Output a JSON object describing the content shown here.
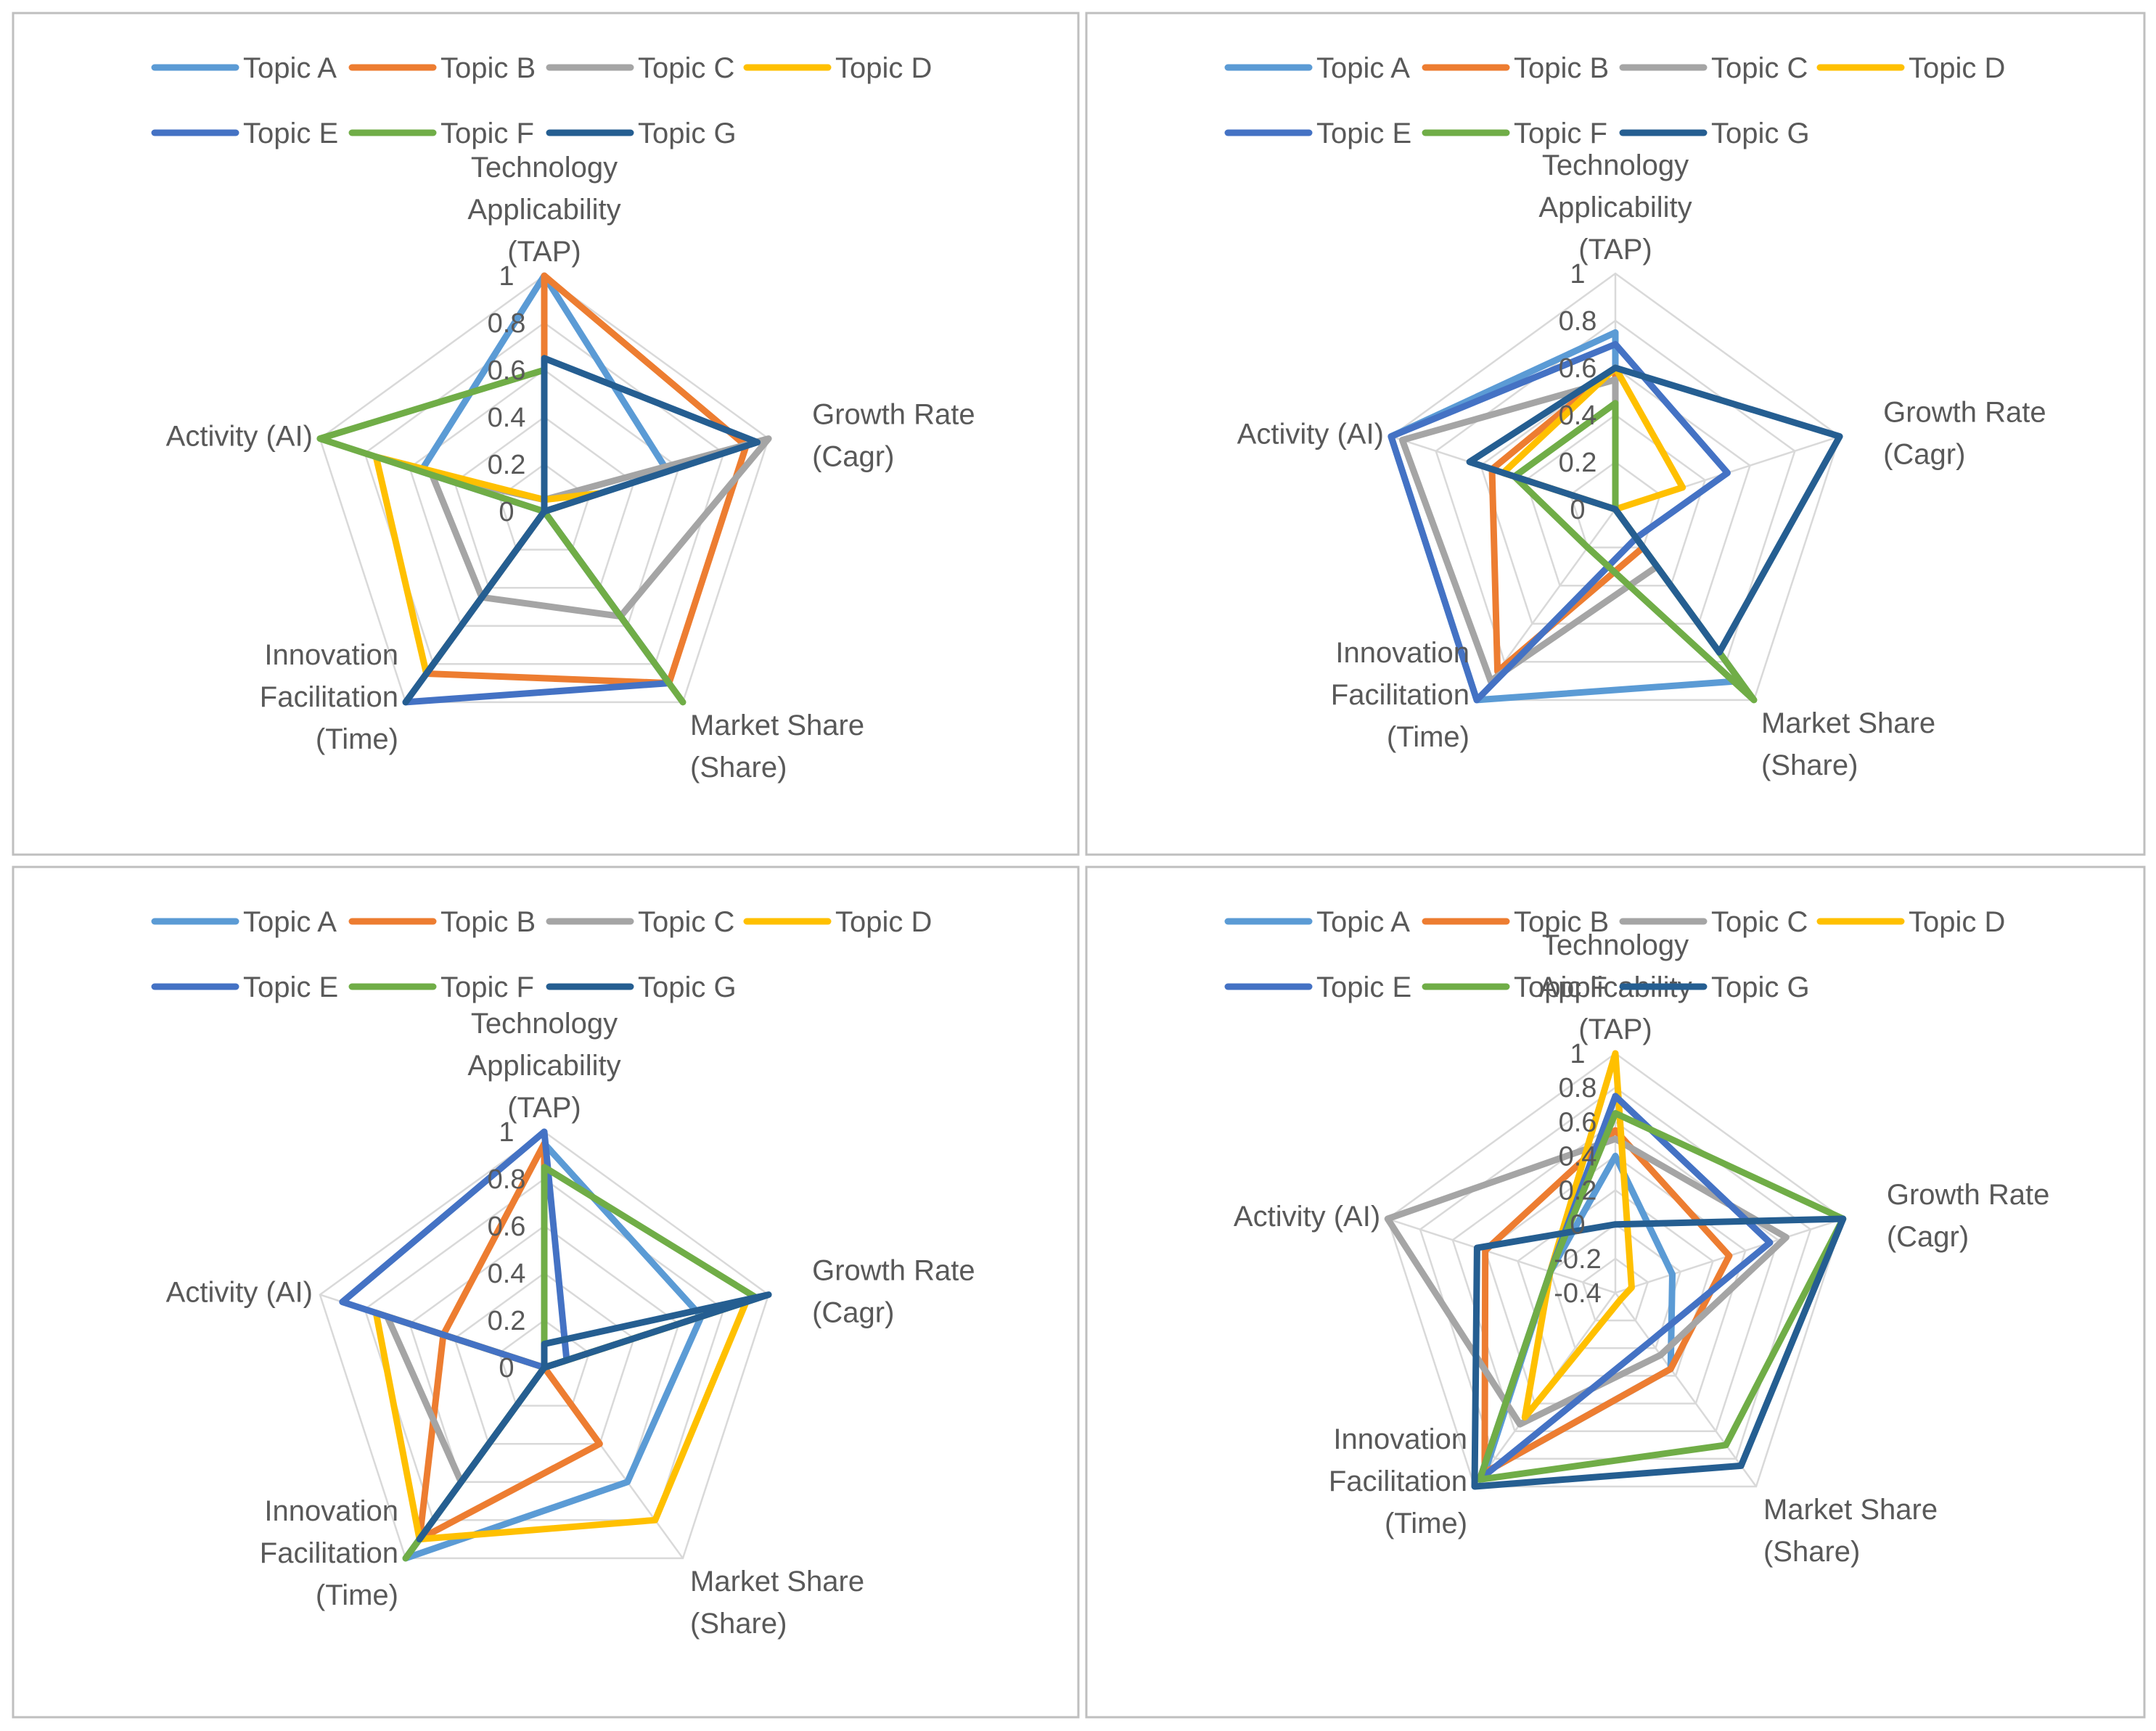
{
  "chart_data": [
    {
      "type": "radar",
      "axes": [
        "Technology Applicability (TAP)",
        "Growth Rate (Cagr)",
        "Market Share (Share)",
        "Innovation Facilitation (Time)",
        "Activity (AI)"
      ],
      "range": [
        0,
        1
      ],
      "ticks": [
        "0",
        "0.2",
        "0.4",
        "0.6",
        "0.8",
        "1"
      ],
      "series": [
        {
          "name": "Topic A",
          "color": "#5B9BD5",
          "values": [
            1.0,
            0.55,
            0.0,
            0.0,
            0.55
          ]
        },
        {
          "name": "Topic B",
          "color": "#ED7D31",
          "values": [
            1.0,
            0.9,
            0.9,
            0.85,
            0.0
          ]
        },
        {
          "name": "Topic C",
          "color": "#A5A5A5",
          "values": [
            0.05,
            1.0,
            0.55,
            0.45,
            0.5
          ]
        },
        {
          "name": "Topic D",
          "color": "#FFC000",
          "values": [
            0.05,
            0.25,
            0.0,
            0.85,
            0.75
          ]
        },
        {
          "name": "Topic E",
          "color": "#4472C4",
          "values": [
            0.5,
            0.0,
            0.9,
            1.0,
            0.0
          ]
        },
        {
          "name": "Topic F",
          "color": "#70AD47",
          "values": [
            0.6,
            0.0,
            1.0,
            0.0,
            1.0
          ]
        },
        {
          "name": "Topic G",
          "color": "#255E91",
          "values": [
            0.65,
            0.95,
            0.0,
            1.0,
            0.0
          ]
        }
      ]
    },
    {
      "type": "radar",
      "axes": [
        "Technology Applicability (TAP)",
        "Growth Rate (Cagr)",
        "Market Share (Share)",
        "Innovation Facilitation (Time)",
        "Activity (AI)"
      ],
      "range": [
        0,
        1
      ],
      "ticks": [
        "0",
        "0.2",
        "0.4",
        "0.6",
        "0.8",
        "1"
      ],
      "series": [
        {
          "name": "Topic A",
          "color": "#5B9BD5",
          "values": [
            0.75,
            0.0,
            0.9,
            1.0,
            1.0
          ]
        },
        {
          "name": "Topic B",
          "color": "#ED7D31",
          "values": [
            0.6,
            0.0,
            0.2,
            0.85,
            0.55
          ]
        },
        {
          "name": "Topic C",
          "color": "#A5A5A5",
          "values": [
            0.55,
            0.0,
            0.3,
            0.9,
            0.95
          ]
        },
        {
          "name": "Topic D",
          "color": "#FFC000",
          "values": [
            0.6,
            0.3,
            0.0,
            0.0,
            0.5
          ]
        },
        {
          "name": "Topic E",
          "color": "#4472C4",
          "values": [
            0.7,
            0.5,
            0.15,
            1.0,
            1.0
          ]
        },
        {
          "name": "Topic F",
          "color": "#70AD47",
          "values": [
            0.45,
            0.0,
            1.0,
            0.2,
            0.45
          ]
        },
        {
          "name": "Topic G",
          "color": "#255E91",
          "values": [
            0.6,
            1.0,
            0.75,
            0.0,
            0.65
          ]
        }
      ]
    },
    {
      "type": "radar",
      "axes": [
        "Technology Applicability (TAP)",
        "Growth Rate (Cagr)",
        "Market Share (Share)",
        "Innovation Facilitation (Time)",
        "Activity (AI)"
      ],
      "range": [
        0,
        1
      ],
      "ticks": [
        "0",
        "0.2",
        "0.4",
        "0.6",
        "0.8",
        "1"
      ],
      "series": [
        {
          "name": "Topic A",
          "color": "#5B9BD5",
          "values": [
            0.95,
            0.7,
            0.6,
            1.0,
            0.0
          ]
        },
        {
          "name": "Topic B",
          "color": "#ED7D31",
          "values": [
            0.95,
            0.0,
            0.4,
            0.9,
            0.45
          ]
        },
        {
          "name": "Topic C",
          "color": "#A5A5A5",
          "values": [
            0.0,
            0.5,
            0.0,
            0.6,
            0.7
          ]
        },
        {
          "name": "Topic D",
          "color": "#FFC000",
          "values": [
            0.0,
            0.9,
            0.8,
            0.9,
            0.75
          ]
        },
        {
          "name": "Topic E",
          "color": "#4472C4",
          "values": [
            1.0,
            0.1,
            0.0,
            0.0,
            0.9
          ]
        },
        {
          "name": "Topic F",
          "color": "#70AD47",
          "values": [
            0.85,
            0.95,
            0.0,
            1.0,
            0.0
          ]
        },
        {
          "name": "Topic G",
          "color": "#255E91",
          "values": [
            0.1,
            1.0,
            0.0,
            0.9,
            0.0
          ]
        }
      ]
    },
    {
      "type": "radar",
      "axes": [
        "Technology Applicability (TAP)",
        "Growth Rate (Cagr)",
        "Market Share (Share)",
        "Innovation Facilitation (Time)",
        "Activity (AI)"
      ],
      "range": [
        -0.4,
        1
      ],
      "ticks": [
        "-0.4",
        "-0.2",
        "0",
        "0.2",
        "0.4",
        "0.6",
        "0.8",
        "1"
      ],
      "series": [
        {
          "name": "Topic A",
          "color": "#5B9BD5",
          "values": [
            0.4,
            -0.05,
            0.15,
            0.9,
            0.0
          ]
        },
        {
          "name": "Topic B",
          "color": "#ED7D31",
          "values": [
            0.55,
            0.3,
            0.15,
            0.9,
            0.4
          ]
        },
        {
          "name": "Topic C",
          "color": "#A5A5A5",
          "values": [
            0.5,
            0.65,
            0.05,
            0.55,
            1.0
          ]
        },
        {
          "name": "Topic D",
          "color": "#FFC000",
          "values": [
            1.0,
            -0.3,
            -0.35,
            0.5,
            0.0
          ]
        },
        {
          "name": "Topic E",
          "color": "#4472C4",
          "values": [
            0.75,
            0.55,
            -0.05,
            0.95,
            0.0
          ]
        },
        {
          "name": "Topic F",
          "color": "#70AD47",
          "values": [
            0.65,
            1.0,
            0.7,
            0.95,
            0.0
          ]
        },
        {
          "name": "Topic G",
          "color": "#255E91",
          "values": [
            0.0,
            1.0,
            0.85,
            1.0,
            0.45
          ]
        }
      ]
    }
  ]
}
